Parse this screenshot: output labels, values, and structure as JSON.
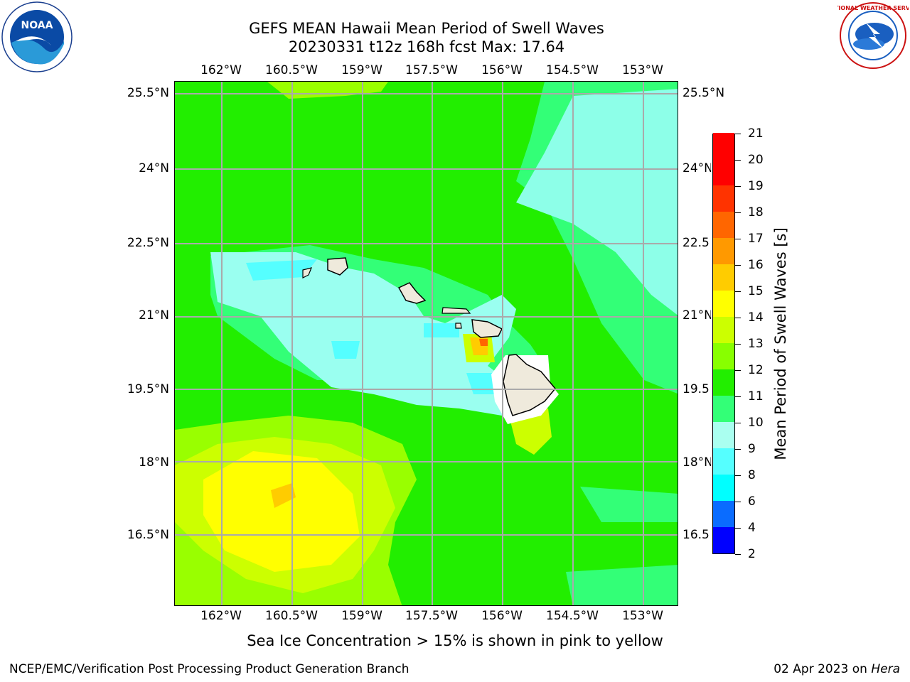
{
  "title": {
    "line1": "GEFS MEAN Hawaii Mean Period of Swell Waves",
    "line2": "20230331 t12z 168h fcst   Max: 17.64"
  },
  "logos": {
    "left": {
      "icon": "noaa-logo",
      "text": "NOAA"
    },
    "right": {
      "icon": "nws-logo",
      "text": "NATIONAL WEATHER SERVICE"
    }
  },
  "map": {
    "lon_ticks": [
      "162°W",
      "160.5°W",
      "159°W",
      "157.5°W",
      "156°W",
      "154.5°W",
      "153°W"
    ],
    "lat_ticks": [
      "25.5°N",
      "24°N",
      "22.5°N",
      "21°N",
      "19.5°N",
      "18°N",
      "16.5°N"
    ],
    "lat_ticks_right": [
      "25.5°N",
      "24°N",
      "22.5",
      "21°N",
      "19.5",
      "18°N",
      "16.5"
    ],
    "lon_range": [
      -163.0,
      -152.3
    ],
    "lat_range": [
      15.0,
      25.8
    ],
    "grid": true,
    "land_color": "#efeadc",
    "ocean_base_color": "#33ee22"
  },
  "colorbar": {
    "title": "Mean Period of Swell Waves [s]",
    "levels": [
      "2",
      "4",
      "6",
      "8",
      "9",
      "10",
      "11",
      "12",
      "13",
      "14",
      "15",
      "16",
      "17",
      "18",
      "19",
      "20",
      "21"
    ],
    "colors": [
      "#0000ff",
      "#0a6cff",
      "#00ffff",
      "#55ffff",
      "#aafff0",
      "#33ff77",
      "#22ee00",
      "#88ff00",
      "#ccff00",
      "#ffff00",
      "#ffcc00",
      "#ff9900",
      "#ff6600",
      "#ff3300",
      "#ff0000",
      "#ff0000"
    ]
  },
  "subtitle": "Sea Ice Concentration > 15% is shown in pink to yellow",
  "footer": {
    "left": "NCEP/EMC/Verification Post Processing Product Generation Branch",
    "right_date": "02 Apr 2023 on ",
    "right_host": "Hera"
  }
}
